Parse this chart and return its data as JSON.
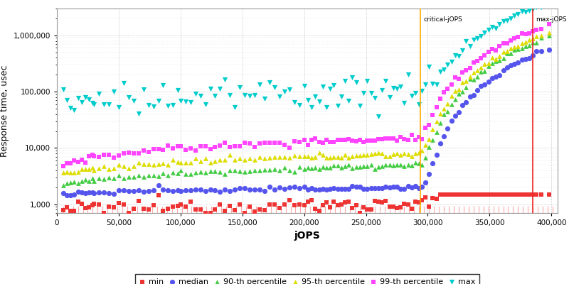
{
  "xlabel": "jOPS",
  "ylabel": "Response time, usec",
  "critical_jops": 294000,
  "max_jops": 385000,
  "xlim": [
    0,
    405000
  ],
  "ylim_log": [
    700,
    3000000
  ],
  "background_color": "#ffffff",
  "grid_color": "#cccccc",
  "legend_labels": [
    "min",
    "median",
    "90-th percentile",
    "95-th percentile",
    "99-th percentile",
    "max"
  ],
  "series_colors": {
    "min": "#ee3333",
    "median": "#5555ee",
    "p90": "#44cc44",
    "p95": "#dddd00",
    "p99": "#ff44ff",
    "max": "#00cccc"
  },
  "series_markers": {
    "min": "s",
    "median": "o",
    "p90": "^",
    "p95": "^",
    "p99": "s",
    "max": "v"
  },
  "tick_color": "#ffaaaa",
  "vline_critical_color": "#ffaa00",
  "vline_max_color": "#ee2222",
  "label_critical": "critical-jOPS",
  "label_max": "max-jOPS"
}
